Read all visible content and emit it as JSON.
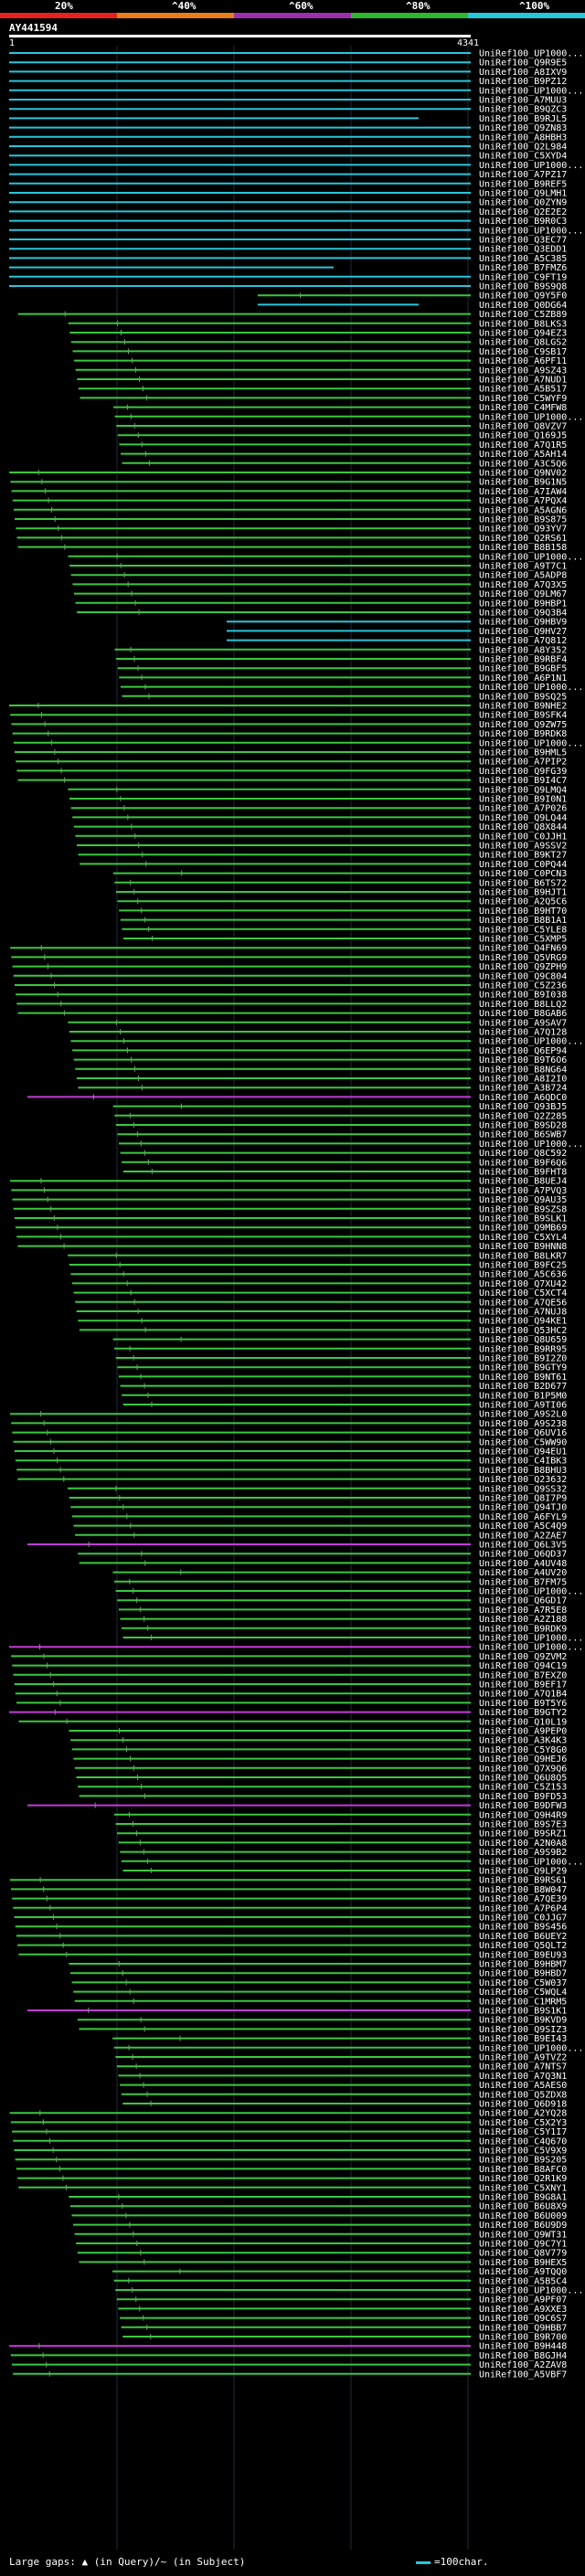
{
  "scale": {
    "labels": [
      "20%",
      "^40%",
      "^60%",
      "^80%",
      "^100%"
    ],
    "colors": [
      "#e8201e",
      "#e97d1a",
      "#9b2fae",
      "#2fb62f",
      "#27c6da"
    ]
  },
  "query": {
    "id": "AY441594",
    "start": "1",
    "end": "4341"
  },
  "hit_colors": {
    "cyan": "#27c6da",
    "green": "#39c83d",
    "magenta": "#c43ad8"
  },
  "hits": [
    "UniRef100_UP1000...",
    "UniRef100_Q9R9E5",
    "UniRef100_A8IXV9",
    "UniRef100_B9PZ12",
    "UniRef100_UP1000...",
    "UniRef100_A7MUU3",
    "UniRef100_B9QZC3",
    "UniRef100_B9RJL5",
    "UniRef100_Q9ZN83",
    "UniRef100_A8HBH3",
    "UniRef100_Q2L984",
    "UniRef100_C5XYD4",
    "UniRef100_UP1000...",
    "UniRef100_A7PZ17",
    "UniRef100_B9REF5",
    "UniRef100_Q9LMH1",
    "UniRef100_Q0ZYN9",
    "UniRef100_Q2E2E2",
    "UniRef100_B9R0C3",
    "UniRef100_UP1000...",
    "UniRef100_Q3EC77",
    "UniRef100_Q3EDD1",
    "UniRef100_A5C385",
    "UniRef100_B7FMZ6",
    "UniRef100_C9FT19",
    "UniRef100_B9S9Q8",
    "UniRef100_Q9Y5F0",
    "UniRef100_Q0DG64",
    "UniRef100_C5ZB89",
    "UniRef100_B8LKS3",
    "UniRef100_Q94EZ3",
    "UniRef100_Q8LGS2",
    "UniRef100_C9SB17",
    "UniRef100_A6PF11",
    "UniRef100_A9SZ43",
    "UniRef100_A7NUD1",
    "UniRef100_A5B517",
    "UniRef100_C5WYF9",
    "UniRef100_C4MFW8",
    "UniRef100_UP1000...",
    "UniRef100_Q8VZV7",
    "UniRef100_Q169J5",
    "UniRef100_A7Q1R5",
    "UniRef100_A5AH14",
    "UniRef100_A3C5Q6",
    "UniRef100_Q9NV02",
    "UniRef100_B9G1N5",
    "UniRef100_A7IAW4",
    "UniRef100_A7PQX4",
    "UniRef100_A5AGN6",
    "UniRef100_B9S875",
    "UniRef100_Q93YV7",
    "UniRef100_Q2RS61",
    "UniRef100_B8B158",
    "UniRef100_UP1000...",
    "UniRef100_A9T7C1",
    "UniRef100_A5ADP8",
    "UniRef100_A7Q3X5",
    "UniRef100_Q9LM67",
    "UniRef100_B9HBP1",
    "UniRef100_Q9Q3B4",
    "UniRef100_Q9HBV9",
    "UniRef100_Q9HV27",
    "UniRef100_A7Q812",
    "UniRef100_A8Y352",
    "UniRef100_B9RBF4",
    "UniRef100_B9GBF5",
    "UniRef100_A6P1N1",
    "UniRef100_UP1000...",
    "UniRef100_B9SQ25",
    "UniRef100_B9NHE2",
    "UniRef100_B9SFK4",
    "UniRef100_Q9ZW75",
    "UniRef100_B9RDK8",
    "UniRef100_UP1000...",
    "UniRef100_B9HML5",
    "UniRef100_A7PIP2",
    "UniRef100_Q9FG39",
    "UniRef100_B9I4C7",
    "UniRef100_Q9LMQ4",
    "UniRef100_B9I0N1",
    "UniRef100_A7P026",
    "UniRef100_Q9LQ44",
    "UniRef100_Q8X844",
    "UniRef100_C0JJH1",
    "UniRef100_A9SSV2",
    "UniRef100_B9KT27",
    "UniRef100_C0PQ44",
    "UniRef100_C0PCN3",
    "UniRef100_B6TS72",
    "UniRef100_B9HJT1",
    "UniRef100_A2Q5C6",
    "UniRef100_B9HT70",
    "UniRef100_B8B1A1",
    "UniRef100_C5YLE8",
    "UniRef100_C5XMP5",
    "UniRef100_Q4FN69",
    "UniRef100_Q5VRG9",
    "UniRef100_Q9ZPH9",
    "UniRef100_Q9C804",
    "UniRef100_C5Z236",
    "UniRef100_B9I038",
    "UniRef100_B8LLQ2",
    "UniRef100_B8GAB6",
    "UniRef100_A9SAV7",
    "UniRef100_A7Q128",
    "UniRef100_UP1000...",
    "UniRef100_Q6EP94",
    "UniRef100_B9T6O6",
    "UniRef100_B8NG64",
    "UniRef100_A8I2I0",
    "UniRef100_A3B724",
    "UniRef100_A6QDC0",
    "UniRef100_Q93BJ5",
    "UniRef100_Q2Z285",
    "UniRef100_B9SD28",
    "UniRef100_B6SWB7",
    "UniRef100_UP1000...",
    "UniRef100_Q8C592",
    "UniRef100_B9F6Q6",
    "UniRef100_B9FHT8",
    "UniRef100_B8UEJ4",
    "UniRef100_A7PVQ3",
    "UniRef100_Q9AU35",
    "UniRef100_B9SZS8",
    "UniRef100_B9SLK1",
    "UniRef100_Q9MB69",
    "UniRef100_C5XYL4",
    "UniRef100_B9HNN8",
    "UniRef100_B8LKR7",
    "UniRef100_B9FC25",
    "UniRef100_A5C636",
    "UniRef100_Q7XU42",
    "UniRef100_C5XCT4",
    "UniRef100_A7QE56",
    "UniRef100_A7NUJ8",
    "UniRef100_Q94KE1",
    "UniRef100_Q53HC2",
    "UniRef100_Q8U659",
    "UniRef100_B9RR95",
    "UniRef100_B9I2Z0",
    "UniRef100_B9GTY9",
    "UniRef100_B9NT61",
    "UniRef100_B2D677",
    "UniRef100_B1P5M0",
    "UniRef100_A9TI06",
    "UniRef100_A9S2L0",
    "UniRef100_A9S238",
    "UniRef100_Q6UV16",
    "UniRef100_C5WW90",
    "UniRef100_Q94EU1",
    "UniRef100_C4IBK3",
    "UniRef100_B8BHU3",
    "UniRef100_Q23632",
    "UniRef100_Q9SS32",
    "UniRef100_Q8I7P9",
    "UniRef100_Q94TJ0",
    "UniRef100_A6FYL9",
    "UniRef100_A5C4Q9",
    "UniRef100_A2ZAE7",
    "UniRef100_Q6L3V5",
    "UniRef100_Q6QD37",
    "UniRef100_A4UV48",
    "UniRef100_A4UV20",
    "UniRef100_B7FM75",
    "UniRef100_UP1000...",
    "UniRef100_Q6GD17",
    "UniRef100_A7R5E8",
    "UniRef100_A2Z188",
    "UniRef100_B9RDK9",
    "UniRef100_UP1000...",
    "UniRef100_UP1000...",
    "UniRef100_Q9ZVM2",
    "UniRef100_Q94C19",
    "UniRef100_B7EXZ0",
    "UniRef100_B9EF17",
    "UniRef100_A7Q1B4",
    "UniRef100_B9T5Y6",
    "UniRef100_B9GTY2",
    "UniRef100_Q10L19",
    "UniRef100_A9PEP0",
    "UniRef100_A3K4K3",
    "UniRef100_C5Y8G0",
    "UniRef100_Q9HEJ6",
    "UniRef100_Q7X9Q6",
    "UniRef100_Q6U8Q5",
    "UniRef100_C5Z153",
    "UniRef100_B9FD53",
    "UniRef100_B9DFW3",
    "UniRef100_Q9H4R9",
    "UniRef100_B9S7E3",
    "UniRef100_B9SRZ1",
    "UniRef100_A2N0A8",
    "UniRef100_A9S9B2",
    "UniRef100_UP1000...",
    "UniRef100_Q9LP29",
    "UniRef100_B9RS61",
    "UniRef100_B8W047",
    "UniRef100_A7QE39",
    "UniRef100_A7P6P4",
    "UniRef100_C0JJG7",
    "UniRef100_B9S456",
    "UniRef100_B6UEY2",
    "UniRef100_Q5QLT2",
    "UniRef100_B9EU93",
    "UniRef100_B9HBM7",
    "UniRef100_B9HBD7",
    "UniRef100_C5W037",
    "UniRef100_C5WQL4",
    "UniRef100_C1MRM5",
    "UniRef100_B9S1K1",
    "UniRef100_B9KVD9",
    "UniRef100_Q9SIZ3",
    "UniRef100_B9EI43",
    "UniRef100_UP1000...",
    "UniRef100_A9TVZ2",
    "UniRef100_A7NTS7",
    "UniRef100_A7Q3N1",
    "UniRef100_A5AES0",
    "UniRef100_Q5ZDX8",
    "UniRef100_Q6D918",
    "UniRef100_A2YQ28",
    "UniRef100_C5X2Y3",
    "UniRef100_C5Y1I7",
    "UniRef100_C4Q670",
    "UniRef100_C5V9X9",
    "UniRef100_B9S205",
    "UniRef100_B8AFC0",
    "UniRef100_Q2R1K9",
    "UniRef100_C5XNY1",
    "UniRef100_B9G8A1",
    "UniRef100_B6U8X9",
    "UniRef100_B6U009",
    "UniRef100_B6U9D9",
    "UniRef100_Q9WT31",
    "UniRef100_Q9C7Y1",
    "UniRef100_Q8V779",
    "UniRef100_B9HEX5",
    "UniRef100_A9TQQ0",
    "UniRef100_A5B5C4",
    "UniRef100_UP1000...",
    "UniRef100_A9PF07",
    "UniRef100_A9XXE3",
    "UniRef100_Q9C6S7",
    "UniRef100_Q9HBB7",
    "UniRef100_B9R700",
    "UniRef100_B9H448",
    "UniRef100_B8GJH4",
    "UniRef100_A2ZAV8",
    "UniRef100_A5VBF7"
  ],
  "footer": {
    "gaps_prefix": "Large gaps:",
    "gaps_query": "(in Query)/~",
    "gaps_subject": "(in Subject)",
    "legend_text": "=100char."
  }
}
